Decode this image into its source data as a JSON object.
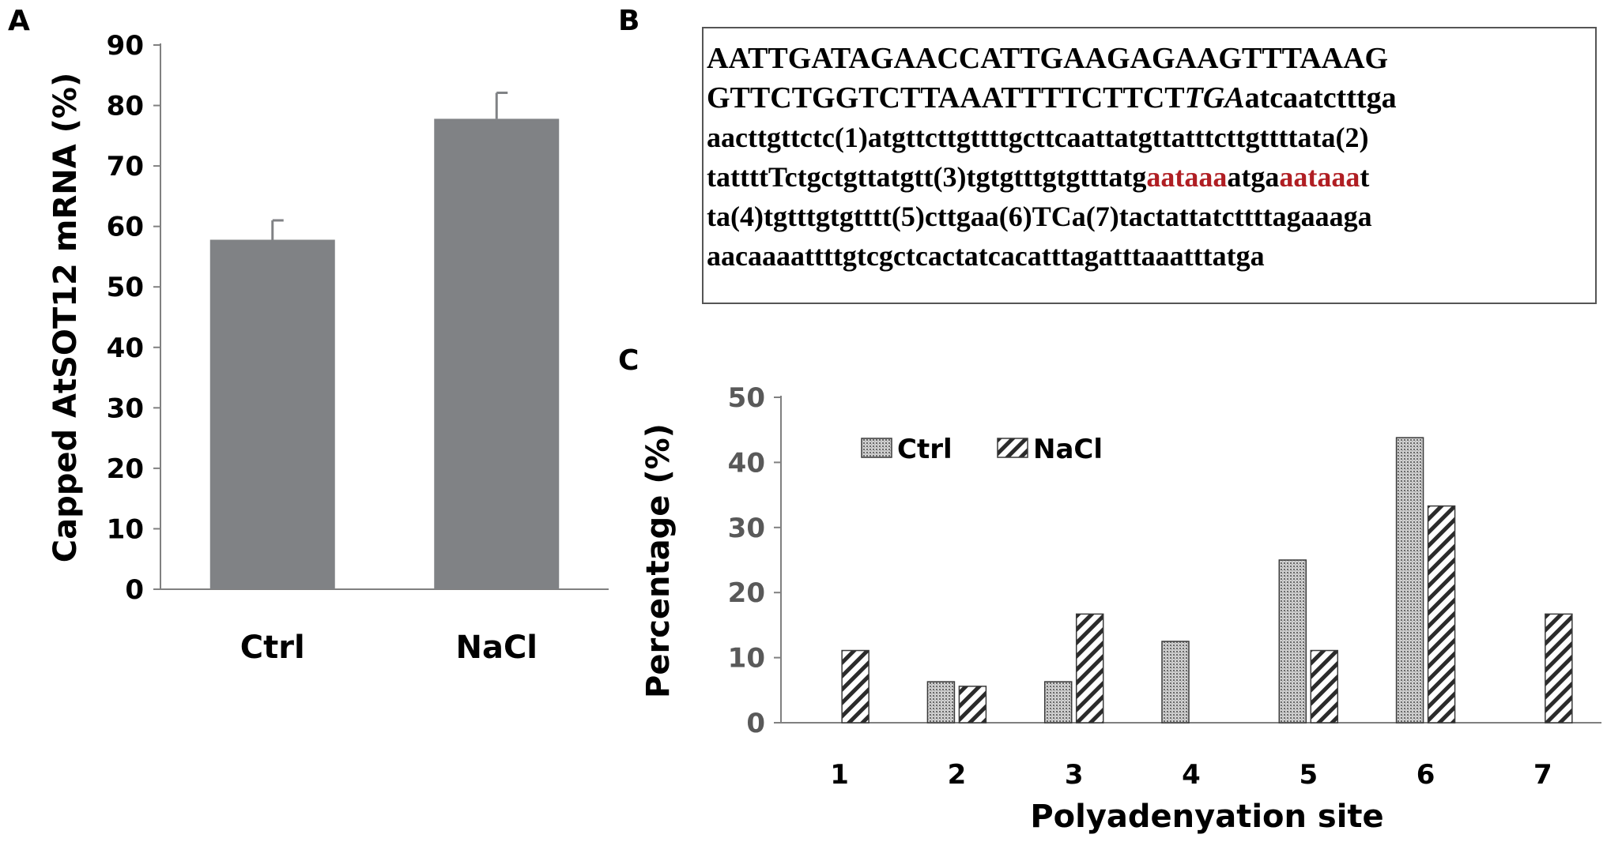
{
  "panel_labels": {
    "a": "A",
    "b": "B",
    "c": "C"
  },
  "colors": {
    "bar_a": "#808285",
    "motif": "#b01e23",
    "axis": "#808080",
    "text": "#000000",
    "tick_text": "#595959"
  },
  "chart_data": [
    {
      "panel": "A",
      "type": "bar",
      "categories": [
        "Ctrl",
        "NaCl"
      ],
      "values": [
        57.8,
        77.8
      ],
      "errors": [
        3.2,
        4.3
      ],
      "ylabel": "Capped AtSOT12 mRNA (%)",
      "xlabel": "",
      "ylim": [
        0,
        90
      ],
      "yticks": [
        0,
        10,
        20,
        30,
        40,
        50,
        60,
        70,
        80,
        90
      ],
      "grid": false
    },
    {
      "panel": "C",
      "type": "bar",
      "categories": [
        "1",
        "2",
        "3",
        "4",
        "5",
        "6",
        "7"
      ],
      "series": [
        {
          "name": "Ctrl",
          "pattern": "dots",
          "values": [
            0,
            6.3,
            6.3,
            12.5,
            25.0,
            43.8,
            0
          ]
        },
        {
          "name": "NaCl",
          "pattern": "hatch",
          "values": [
            11.1,
            5.6,
            16.7,
            0,
            11.1,
            33.3,
            16.7
          ]
        }
      ],
      "xlabel": "Polyadenyation site",
      "ylabel": "Percentage (%)",
      "ylim": [
        0,
        50
      ],
      "yticks": [
        0,
        10,
        20,
        30,
        40,
        50
      ],
      "legend_position": "top-left",
      "grid": false
    }
  ],
  "sequence": {
    "lines": [
      [
        {
          "text": "AATTGATAGAACCATTGAAGAGAAGTTTAAAG",
          "style": "normal"
        }
      ],
      [
        {
          "text": "GTTCTGGTCTTAAATTTTCTTCT",
          "style": "normal"
        },
        {
          "text": "TGA",
          "style": "italic"
        },
        {
          "text": "atcaatctttga",
          "style": "normal"
        }
      ],
      [
        {
          "text": "aacttgttctc(1)atgttcttgttttgcttcaattatgttatttcttgttttata(2)",
          "style": "normal"
        }
      ],
      [
        {
          "text": "tattttTctgctgttatgtt(3)tgtgtttgtgtttatg",
          "style": "normal"
        },
        {
          "text": "aataaa",
          "style": "motif"
        },
        {
          "text": "atga",
          "style": "normal"
        },
        {
          "text": "aataaa",
          "style": "motif"
        },
        {
          "text": "t",
          "style": "normal"
        }
      ],
      [
        {
          "text": "ta(4)tgtttgtgtttt(5)cttgaa(6)TCa(7)tactattatcttttagaaaga",
          "style": "normal"
        }
      ],
      [
        {
          "text": "aacaaaattttgtcgctcactatcacatttagatttaaatttatga",
          "style": "normal"
        }
      ]
    ]
  }
}
